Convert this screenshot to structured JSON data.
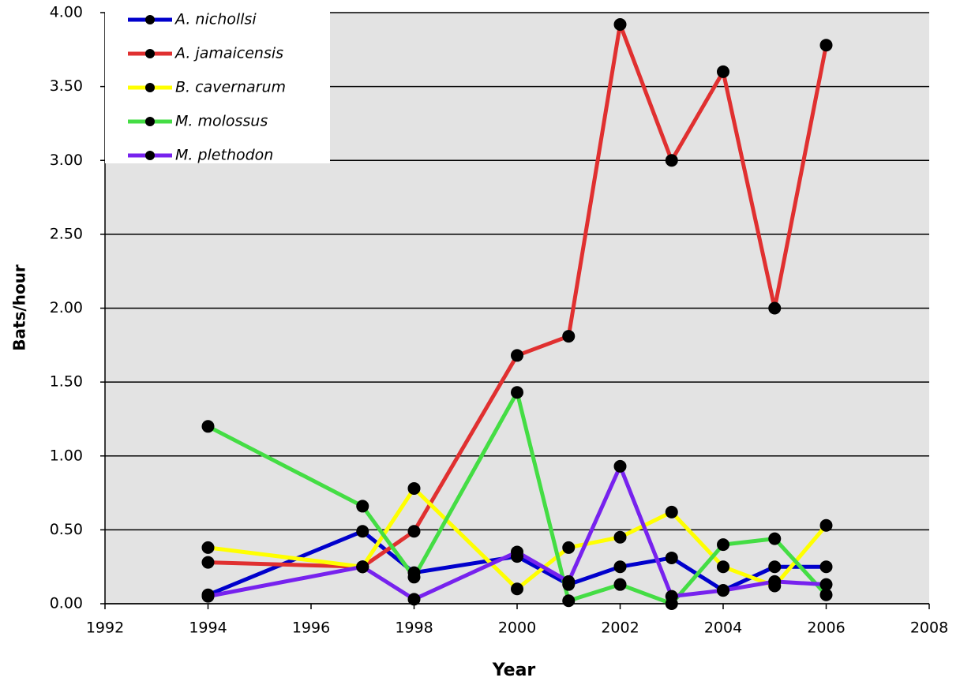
{
  "chart_data": {
    "type": "line",
    "x_label": "Year",
    "y_label": "Bats/hour",
    "x": [
      1994,
      1997,
      1998,
      2000,
      2001,
      2002,
      2003,
      2004,
      2005,
      2006
    ],
    "series": [
      {
        "name": "A. nichollsi",
        "color": "#0000cc",
        "values": [
          0.06,
          0.49,
          0.21,
          0.32,
          0.13,
          0.25,
          0.31,
          0.09,
          0.25,
          0.25
        ]
      },
      {
        "name": "A. jamaicensis",
        "color": "#e03030",
        "values": [
          0.28,
          0.25,
          0.49,
          1.68,
          1.81,
          3.92,
          3.0,
          3.6,
          2.0,
          3.78
        ]
      },
      {
        "name": "B. cavernarum",
        "color": "#ffff00",
        "values": [
          0.38,
          0.25,
          0.78,
          0.1,
          0.38,
          0.45,
          0.62,
          0.25,
          0.12,
          0.53
        ]
      },
      {
        "name": "M. molossus",
        "color": "#44dd44",
        "values": [
          1.2,
          0.66,
          0.18,
          1.43,
          0.02,
          0.13,
          0.0,
          0.4,
          0.44,
          0.06
        ]
      },
      {
        "name": "M. plethodon",
        "color": "#7722ee",
        "values": [
          0.05,
          0.25,
          0.03,
          0.35,
          0.15,
          0.93,
          0.05,
          0.09,
          0.15,
          0.13
        ]
      }
    ],
    "marker_color": "#000000",
    "xlim": [
      1992,
      2008
    ],
    "xticks": [
      1992,
      1994,
      1996,
      1998,
      2000,
      2002,
      2004,
      2006,
      2008
    ],
    "ylim": [
      0,
      4
    ],
    "yticks": [
      {
        "value": 0,
        "label": "0.00"
      },
      {
        "value": 0.5,
        "label": "0.50"
      },
      {
        "value": 1,
        "label": "1.00"
      },
      {
        "value": 1.5,
        "label": "1.50"
      },
      {
        "value": 2,
        "label": "2.00"
      },
      {
        "value": 2.5,
        "label": "2.50"
      },
      {
        "value": 3,
        "label": "3.00"
      },
      {
        "value": 3.5,
        "label": "3.50"
      },
      {
        "value": 4,
        "label": "4.00"
      }
    ],
    "grid": true,
    "legend": "top-left",
    "plot_background": "#e3e3e3"
  }
}
